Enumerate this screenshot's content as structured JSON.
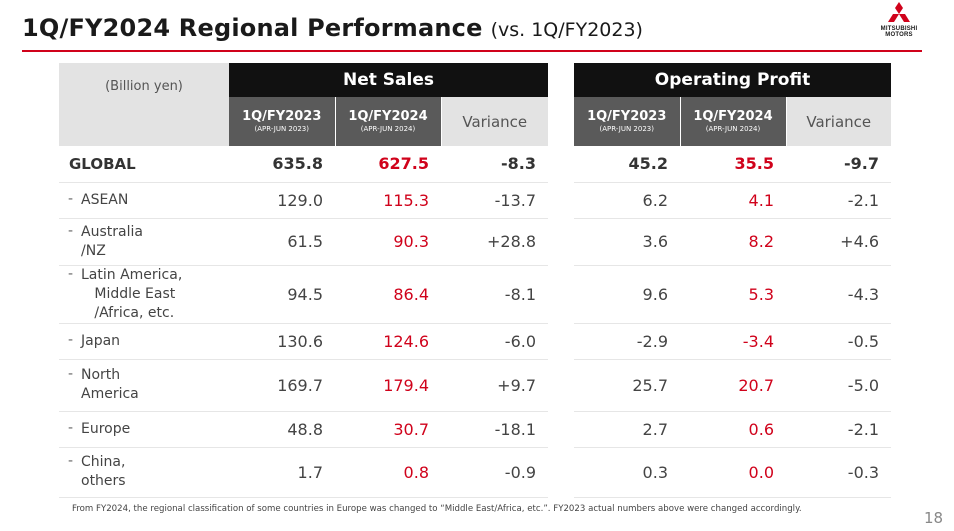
{
  "header": {
    "title": "1Q/FY2024 Regional Performance",
    "subtitle": "(vs. 1Q/FY2023)"
  },
  "logo": {
    "icon": "three-diamonds-icon",
    "line1": "MITSUBISHI",
    "line2": "MOTORS"
  },
  "table": {
    "unit_label": "(Billion yen)",
    "net_sales_label": "Net Sales",
    "operating_profit_label": "Operating Profit",
    "columns": [
      {
        "year": "1Q/FY2023",
        "period": "(APR-JUN 2023)"
      },
      {
        "year": "1Q/FY2024",
        "period": "(APR-JUN 2024)"
      },
      {
        "label": "Variance"
      }
    ],
    "rows": [
      {
        "region": "GLOBAL",
        "ns_fy23": "635.8",
        "ns_fy24": "627.5",
        "ns_var": "-8.3",
        "op_fy23": "45.2",
        "op_fy24": "35.5",
        "op_var": "-9.7"
      },
      {
        "region": "ASEAN",
        "ns_fy23": "129.0",
        "ns_fy24": "115.3",
        "ns_var": "-13.7",
        "op_fy23": "6.2",
        "op_fy24": "4.1",
        "op_var": "-2.1"
      },
      {
        "region_line1": "Australia",
        "region_line2": "/NZ",
        "ns_fy23": "61.5",
        "ns_fy24": "90.3",
        "ns_var": "+28.8",
        "op_fy23": "3.6",
        "op_fy24": "8.2",
        "op_var": "+4.6"
      },
      {
        "region_line1": "Latin America,",
        "region_line2": "Middle East",
        "region_line3": "/Africa, etc.",
        "ns_fy23": "94.5",
        "ns_fy24": "86.4",
        "ns_var": "-8.1",
        "op_fy23": "9.6",
        "op_fy24": "5.3",
        "op_var": "-4.3"
      },
      {
        "region": "Japan",
        "ns_fy23": "130.6",
        "ns_fy24": "124.6",
        "ns_var": "-6.0",
        "op_fy23": "-2.9",
        "op_fy24": "-3.4",
        "op_var": "-0.5"
      },
      {
        "region_line1": "North",
        "region_line2": "America",
        "ns_fy23": "169.7",
        "ns_fy24": "179.4",
        "ns_var": "+9.7",
        "op_fy23": "25.7",
        "op_fy24": "20.7",
        "op_var": "-5.0"
      },
      {
        "region": "Europe",
        "ns_fy23": "48.8",
        "ns_fy24": "30.7",
        "ns_var": "-18.1",
        "op_fy23": "2.7",
        "op_fy24": "0.6",
        "op_var": "-2.1"
      },
      {
        "region_line1": "China,",
        "region_line2": "others",
        "ns_fy23": "1.7",
        "ns_fy24": "0.8",
        "ns_var": "-0.9",
        "op_fy23": "0.3",
        "op_fy24": "0.0",
        "op_var": "-0.3"
      }
    ],
    "dash": "-"
  },
  "footnote": "From FY2024, the regional classification of some countries in Europe was changed to “Middle East/Africa, etc.”. FY2023 actual numbers above were changed accordingly.",
  "page_number": "18",
  "colors": {
    "accent_red": "#d0021b",
    "header_black": "#111111",
    "header_gray": "#5a5a5a",
    "header_light": "#e3e3e3"
  }
}
